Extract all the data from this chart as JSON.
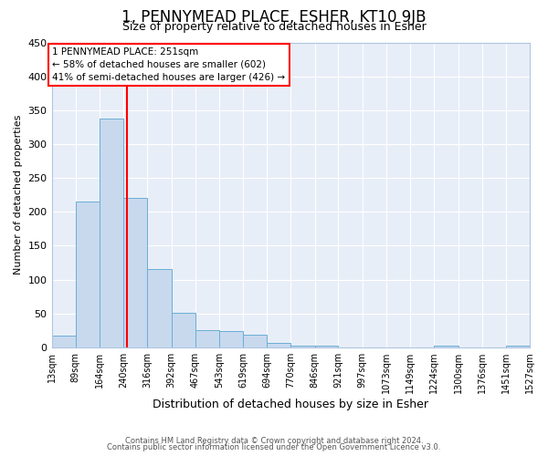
{
  "title": "1, PENNYMEAD PLACE, ESHER, KT10 9JB",
  "subtitle": "Size of property relative to detached houses in Esher",
  "xlabel": "Distribution of detached houses by size in Esher",
  "ylabel": "Number of detached properties",
  "bar_values": [
    18,
    215,
    338,
    221,
    115,
    51,
    26,
    24,
    19,
    7,
    3,
    2,
    0,
    0,
    0,
    0,
    3,
    0,
    0,
    3
  ],
  "bin_edges": [
    13,
    89,
    164,
    240,
    316,
    392,
    467,
    543,
    619,
    694,
    770,
    846,
    921,
    997,
    1073,
    1149,
    1224,
    1300,
    1376,
    1451,
    1527
  ],
  "tick_labels": [
    "13sqm",
    "89sqm",
    "164sqm",
    "240sqm",
    "316sqm",
    "392sqm",
    "467sqm",
    "543sqm",
    "619sqm",
    "694sqm",
    "770sqm",
    "846sqm",
    "921sqm",
    "997sqm",
    "1073sqm",
    "1149sqm",
    "1224sqm",
    "1300sqm",
    "1376sqm",
    "1451sqm",
    "1527sqm"
  ],
  "bar_color": "#c8d9ee",
  "bar_edgecolor": "#6aaed6",
  "red_line_x": 251,
  "annotation_title": "1 PENNYMEAD PLACE: 251sqm",
  "annotation_line1": "← 58% of detached houses are smaller (602)",
  "annotation_line2": "41% of semi-detached houses are larger (426) →",
  "ylim": [
    0,
    450
  ],
  "yticks": [
    0,
    50,
    100,
    150,
    200,
    250,
    300,
    350,
    400,
    450
  ],
  "footer1": "Contains HM Land Registry data © Crown copyright and database right 2024.",
  "footer2": "Contains public sector information licensed under the Open Government Licence v3.0.",
  "background_color": "#ffffff",
  "plot_bg_color": "#e8eef8",
  "grid_color": "#ffffff",
  "title_fontsize": 12,
  "subtitle_fontsize": 9,
  "ylabel_fontsize": 8,
  "xlabel_fontsize": 9,
  "tick_fontsize": 7,
  "footer_fontsize": 6
}
